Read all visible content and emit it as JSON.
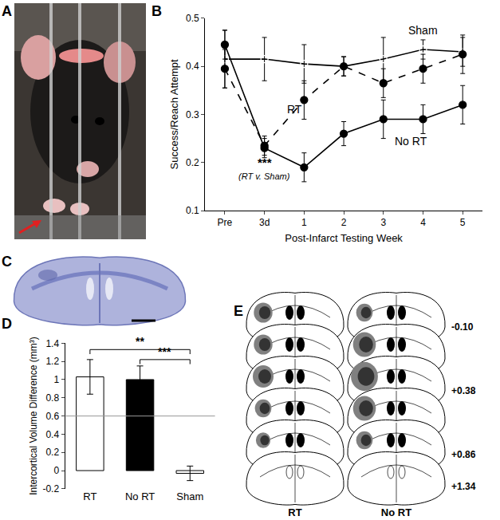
{
  "panel_labels": [
    "A",
    "B",
    "C",
    "D",
    "E"
  ],
  "chart_data": [
    {
      "type": "line",
      "categories": [
        "Pre",
        "3d",
        "1",
        "2",
        "3",
        "4",
        "5"
      ],
      "x_label": "Post-Infarct Testing Week",
      "y_label": "Success/Reach Attempt",
      "ylim": [
        0.1,
        0.5
      ],
      "yticks": [
        0.1,
        0.2,
        0.3,
        0.4,
        0.5
      ],
      "grid": false,
      "series": [
        {
          "name": "Sham",
          "color": "#000000",
          "marker": "circle-open",
          "line_style": "solid",
          "values": [
            0.415,
            0.415,
            0.405,
            0.4,
            0.415,
            0.435,
            0.43
          ],
          "errors": [
            0.06,
            0.045,
            0.04,
            0.02,
            0.045,
            0.02,
            0.03
          ]
        },
        {
          "name": "RT",
          "color": "#000000",
          "marker": "circle",
          "line_style": "dash",
          "values": [
            0.395,
            0.235,
            0.33,
            0.4,
            0.365,
            0.395,
            0.425
          ],
          "errors": [
            0.04,
            0.02,
            0.04,
            0.02,
            0.03,
            0.03,
            0.04
          ]
        },
        {
          "name": "No RT",
          "color": "#000000",
          "marker": "circle",
          "line_style": "solid",
          "values": [
            0.445,
            0.23,
            0.19,
            0.26,
            0.29,
            0.29,
            0.32
          ],
          "errors": [
            0.03,
            0.02,
            0.03,
            0.025,
            0.04,
            0.03,
            0.04
          ]
        }
      ],
      "annotations": [
        {
          "text": "***",
          "category": "3d"
        },
        {
          "text": "(RT v. Sham)",
          "category": "3d"
        }
      ]
    },
    {
      "type": "bar",
      "categories": [
        "RT",
        "No RT",
        "Sham"
      ],
      "values": [
        1.03,
        1.0,
        -0.03
      ],
      "errors": [
        0.19,
        0.15,
        0.08
      ],
      "colors": [
        "#ffffff",
        "#000000",
        "#ffffff"
      ],
      "y_label": "Intercortical Volume Difference (mm³)",
      "ylim": [
        -0.2,
        1.4
      ],
      "yticks": [
        -0.2,
        0,
        0.2,
        0.4,
        0.6,
        0.8,
        1,
        1.2,
        1.4
      ],
      "grid": false,
      "reference_line": 0.6,
      "significance": [
        {
          "from": "RT",
          "to": "Sham",
          "text": "**"
        },
        {
          "from": "No RT",
          "to": "Sham",
          "text": "***"
        }
      ]
    }
  ],
  "schematic": {
    "columns": [
      "RT",
      "No RT"
    ],
    "section_labels": [
      "-0.10",
      "+0.38",
      "+0.86",
      "+1.34"
    ]
  }
}
